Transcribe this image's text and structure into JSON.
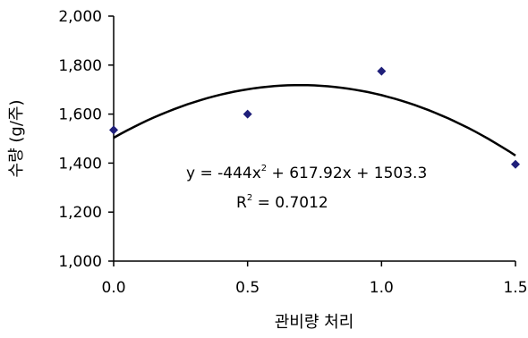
{
  "chart_data": {
    "type": "scatter",
    "x": [
      0.0,
      0.5,
      1.0,
      1.5
    ],
    "y": [
      1535,
      1600,
      1775,
      1395
    ],
    "xlabel": "관비량 처리",
    "ylabel": "수량 (g/주)",
    "xlim": [
      0,
      1.5
    ],
    "ylim": [
      1000,
      2000
    ],
    "xticks": [
      "0.0",
      "0.5",
      "1.0",
      "1.5"
    ],
    "yticks": [
      "1,000",
      "1,200",
      "1,400",
      "1,600",
      "1,800",
      "2,000"
    ],
    "grid": false,
    "marker_color": "#1f1f7a",
    "trendline": {
      "type": "polynomial",
      "coefficients": [
        -444,
        617.92,
        1503.3
      ],
      "equation_text": "y = -444x",
      "equation_rest": " + 617.92x + 1503.3",
      "r2_text": "R",
      "r2_rest": " = 0.7012",
      "superscript": "2"
    }
  }
}
